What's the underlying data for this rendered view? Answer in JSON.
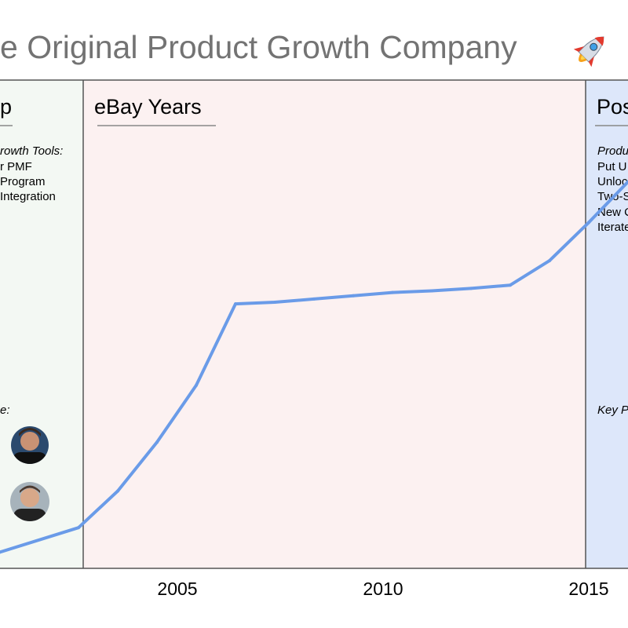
{
  "chart_data": {
    "type": "line",
    "title": "e Original Product Growth Company",
    "title_icon": "rocket-icon",
    "x": [
      2000,
      2002,
      2003,
      2004,
      2005,
      2006,
      2007,
      2008,
      2009,
      2010,
      2011,
      2012,
      2013,
      2014,
      2015,
      2016
    ],
    "series": [
      {
        "name": "growth",
        "values": [
          2,
          5,
          9.5,
          15.5,
          22.5,
          32.5,
          32.7,
          33.1,
          33.5,
          33.9,
          34.1,
          34.4,
          34.8,
          37.8,
          42.5,
          47.5
        ]
      }
    ],
    "xlim": [
      2000,
      2016
    ],
    "ylim": [
      0,
      60
    ],
    "xticks": [
      "2005",
      "2010",
      "2015"
    ],
    "colors": {
      "line": "#6a9be8",
      "region_1": "#f3f8f3",
      "region_2": "#fcf1f1",
      "region_3": "#dde7fa",
      "border": "#555555"
    },
    "regions": [
      {
        "label": "p",
        "heading": "rowth Tools:",
        "items": [
          "r PMF",
          "Program",
          "Integration"
        ],
        "people_label": "e:",
        "people": [
          "person-avatar-1",
          "person-avatar-2"
        ]
      },
      {
        "label": "eBay Years"
      },
      {
        "label": "Pos",
        "heading": "Produ",
        "items": [
          "Put U",
          "Unloc",
          "Two-S",
          "New C",
          "Iterate"
        ],
        "key_label": "Key P"
      }
    ]
  }
}
